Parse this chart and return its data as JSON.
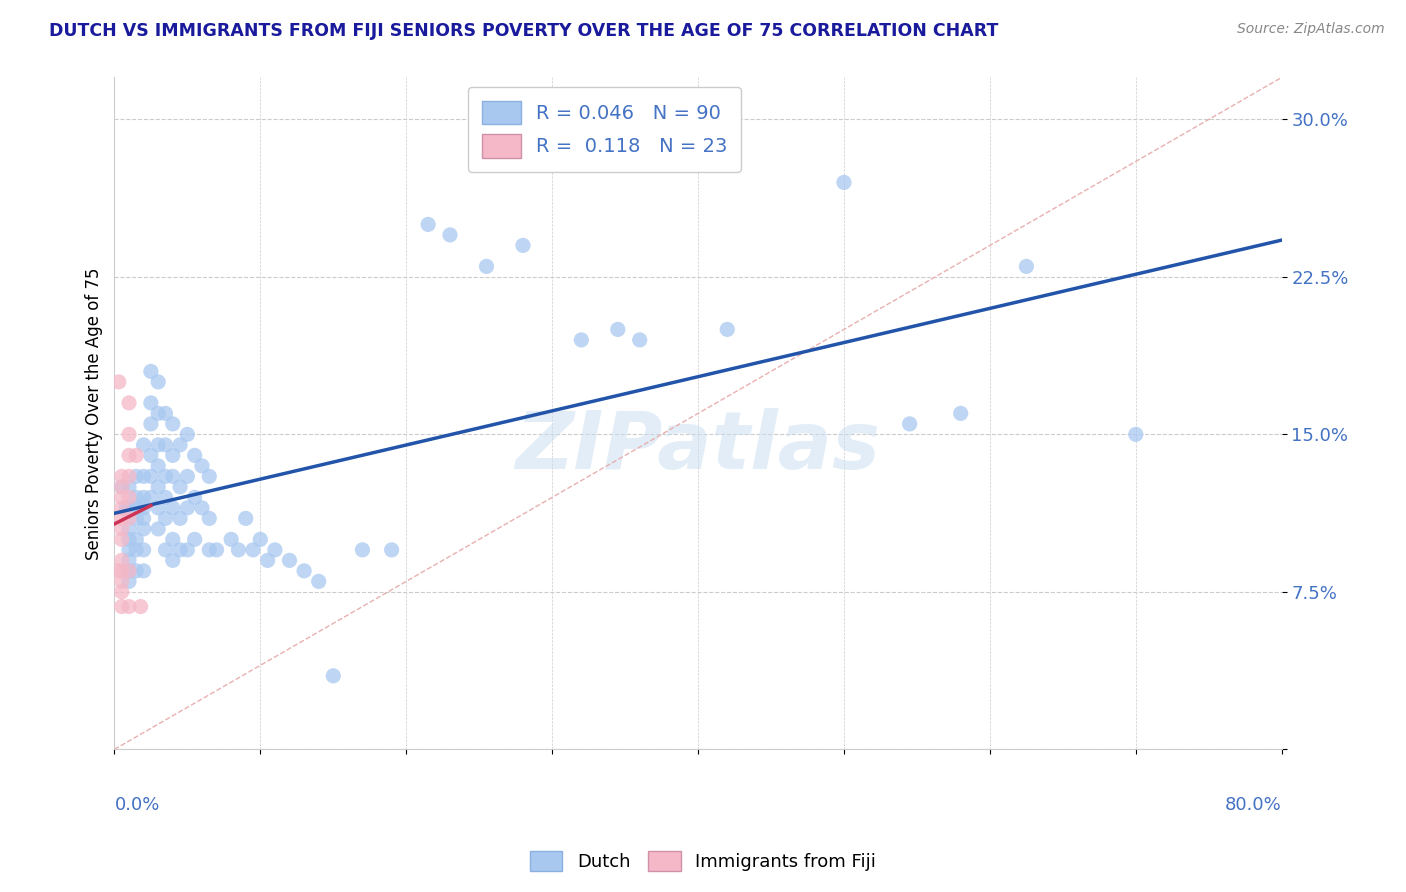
{
  "title": "DUTCH VS IMMIGRANTS FROM FIJI SENIORS POVERTY OVER THE AGE OF 75 CORRELATION CHART",
  "source": "Source: ZipAtlas.com",
  "ylabel": "Seniors Poverty Over the Age of 75",
  "ytick_values": [
    0.0,
    0.075,
    0.15,
    0.225,
    0.3
  ],
  "ytick_labels": [
    "",
    "7.5%",
    "15.0%",
    "22.5%",
    "30.0%"
  ],
  "xtick_values": [
    0.0,
    0.1,
    0.2,
    0.3,
    0.4,
    0.5,
    0.6,
    0.7,
    0.8
  ],
  "xlim": [
    0.0,
    0.8
  ],
  "ylim": [
    0.0,
    0.32
  ],
  "dutch_color": "#a8c8f0",
  "fiji_color": "#f4b8c8",
  "trend_dutch_color": "#2255aa",
  "trend_fiji_color": "#cc3355",
  "watermark": "ZIPatlas",
  "dutch_points": [
    [
      0.005,
      0.125
    ],
    [
      0.008,
      0.115
    ],
    [
      0.01,
      0.125
    ],
    [
      0.01,
      0.115
    ],
    [
      0.01,
      0.105
    ],
    [
      0.01,
      0.1
    ],
    [
      0.01,
      0.095
    ],
    [
      0.01,
      0.09
    ],
    [
      0.01,
      0.085
    ],
    [
      0.01,
      0.08
    ],
    [
      0.015,
      0.13
    ],
    [
      0.015,
      0.12
    ],
    [
      0.015,
      0.115
    ],
    [
      0.015,
      0.11
    ],
    [
      0.015,
      0.1
    ],
    [
      0.015,
      0.095
    ],
    [
      0.015,
      0.085
    ],
    [
      0.02,
      0.145
    ],
    [
      0.02,
      0.13
    ],
    [
      0.02,
      0.12
    ],
    [
      0.02,
      0.115
    ],
    [
      0.02,
      0.11
    ],
    [
      0.02,
      0.105
    ],
    [
      0.02,
      0.095
    ],
    [
      0.02,
      0.085
    ],
    [
      0.025,
      0.18
    ],
    [
      0.025,
      0.165
    ],
    [
      0.025,
      0.155
    ],
    [
      0.025,
      0.14
    ],
    [
      0.025,
      0.13
    ],
    [
      0.025,
      0.12
    ],
    [
      0.03,
      0.175
    ],
    [
      0.03,
      0.16
    ],
    [
      0.03,
      0.145
    ],
    [
      0.03,
      0.135
    ],
    [
      0.03,
      0.125
    ],
    [
      0.03,
      0.115
    ],
    [
      0.03,
      0.105
    ],
    [
      0.035,
      0.16
    ],
    [
      0.035,
      0.145
    ],
    [
      0.035,
      0.13
    ],
    [
      0.035,
      0.12
    ],
    [
      0.035,
      0.11
    ],
    [
      0.035,
      0.095
    ],
    [
      0.04,
      0.155
    ],
    [
      0.04,
      0.14
    ],
    [
      0.04,
      0.13
    ],
    [
      0.04,
      0.115
    ],
    [
      0.04,
      0.1
    ],
    [
      0.04,
      0.09
    ],
    [
      0.045,
      0.145
    ],
    [
      0.045,
      0.125
    ],
    [
      0.045,
      0.11
    ],
    [
      0.045,
      0.095
    ],
    [
      0.05,
      0.15
    ],
    [
      0.05,
      0.13
    ],
    [
      0.05,
      0.115
    ],
    [
      0.05,
      0.095
    ],
    [
      0.055,
      0.14
    ],
    [
      0.055,
      0.12
    ],
    [
      0.055,
      0.1
    ],
    [
      0.06,
      0.135
    ],
    [
      0.06,
      0.115
    ],
    [
      0.065,
      0.13
    ],
    [
      0.065,
      0.11
    ],
    [
      0.065,
      0.095
    ],
    [
      0.07,
      0.095
    ],
    [
      0.08,
      0.1
    ],
    [
      0.085,
      0.095
    ],
    [
      0.09,
      0.11
    ],
    [
      0.095,
      0.095
    ],
    [
      0.1,
      0.1
    ],
    [
      0.105,
      0.09
    ],
    [
      0.11,
      0.095
    ],
    [
      0.12,
      0.09
    ],
    [
      0.13,
      0.085
    ],
    [
      0.14,
      0.08
    ],
    [
      0.15,
      0.035
    ],
    [
      0.17,
      0.095
    ],
    [
      0.19,
      0.095
    ],
    [
      0.215,
      0.25
    ],
    [
      0.23,
      0.245
    ],
    [
      0.255,
      0.23
    ],
    [
      0.28,
      0.24
    ],
    [
      0.32,
      0.195
    ],
    [
      0.345,
      0.2
    ],
    [
      0.36,
      0.195
    ],
    [
      0.42,
      0.2
    ],
    [
      0.5,
      0.27
    ],
    [
      0.545,
      0.155
    ],
    [
      0.58,
      0.16
    ],
    [
      0.625,
      0.23
    ],
    [
      0.7,
      0.15
    ]
  ],
  "fiji_points": [
    [
      0.003,
      0.175
    ],
    [
      0.005,
      0.13
    ],
    [
      0.005,
      0.125
    ],
    [
      0.005,
      0.12
    ],
    [
      0.005,
      0.115
    ],
    [
      0.005,
      0.11
    ],
    [
      0.005,
      0.105
    ],
    [
      0.005,
      0.1
    ],
    [
      0.005,
      0.09
    ],
    [
      0.005,
      0.085
    ],
    [
      0.005,
      0.08
    ],
    [
      0.005,
      0.075
    ],
    [
      0.005,
      0.068
    ],
    [
      0.01,
      0.165
    ],
    [
      0.01,
      0.15
    ],
    [
      0.01,
      0.14
    ],
    [
      0.01,
      0.13
    ],
    [
      0.01,
      0.12
    ],
    [
      0.01,
      0.11
    ],
    [
      0.01,
      0.085
    ],
    [
      0.01,
      0.068
    ],
    [
      0.015,
      0.14
    ],
    [
      0.018,
      0.068
    ],
    [
      0.003,
      0.085
    ]
  ]
}
